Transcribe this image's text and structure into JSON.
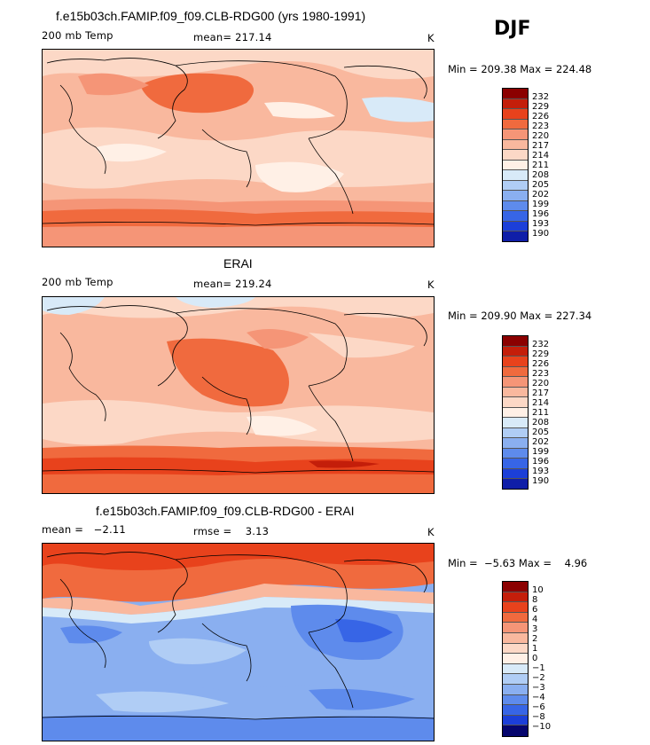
{
  "season_label": "DJF",
  "panel1": {
    "title": "f.e15b03ch.FAMIP.f09_f09.CLB-RDG00 (yrs 1980-1991)",
    "variable": "200 mb Temp",
    "mean_text": "mean= 217.14",
    "units": "K",
    "minmax_text": "Min = 209.38 Max = 224.48",
    "colorbar_labels": [
      "232",
      "229",
      "226",
      "223",
      "220",
      "217",
      "214",
      "211",
      "208",
      "205",
      "202",
      "199",
      "196",
      "193",
      "190"
    ]
  },
  "panel2": {
    "title": "ERAI",
    "variable": "200 mb Temp",
    "mean_text": "mean= 219.24",
    "units": "K",
    "minmax_text": "Min = 209.90 Max = 227.34",
    "colorbar_labels": [
      "232",
      "229",
      "226",
      "223",
      "220",
      "217",
      "214",
      "211",
      "208",
      "205",
      "202",
      "199",
      "196",
      "193",
      "190"
    ]
  },
  "panel3": {
    "title": "f.e15b03ch.FAMIP.f09_f09.CLB-RDG00 - ERAI",
    "mean_text": "mean =   −2.11",
    "rmse_text": "rmse =    3.13",
    "units": "K",
    "minmax_text": "Min =  −5.63 Max =    4.96",
    "colorbar_labels": [
      "10",
      "8",
      "6",
      "4",
      "3",
      "2",
      "1",
      "0",
      "−1",
      "−2",
      "−3",
      "−4",
      "−6",
      "−8",
      "−10"
    ]
  },
  "colors": {
    "scale": [
      "#8b0000",
      "#c41e0a",
      "#e8421c",
      "#f06a3e",
      "#f59577",
      "#f9b89e",
      "#fcd8c6",
      "#fff0e6",
      "#d8eaf8",
      "#b0cdf5",
      "#8aaff0",
      "#5e8bec",
      "#3765e6",
      "#1c3fd8",
      "#0f1ea8",
      "#06066e"
    ]
  }
}
